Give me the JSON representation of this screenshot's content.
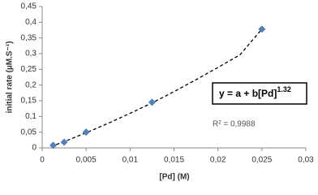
{
  "chart_data": {
    "type": "scatter",
    "x_label": "[Pd] (M)",
    "y_label": "initial rate (µM.S⁻¹)",
    "series": [
      {
        "color": "#4f81bd",
        "x": [
          0.00125,
          0.0025,
          0.005,
          0.0125,
          0.025
        ],
        "values": [
          0.008,
          0.018,
          0.05,
          0.145,
          0.378
        ]
      }
    ],
    "trendline": {
      "style": "dashed",
      "color": "#000000",
      "x": [
        0.001,
        0.0025,
        0.005,
        0.0075,
        0.01,
        0.0125,
        0.015,
        0.0175,
        0.02,
        0.0225,
        0.025
      ],
      "values": [
        0.004,
        0.02,
        0.048,
        0.078,
        0.11,
        0.143,
        0.179,
        0.217,
        0.256,
        0.296,
        0.378
      ]
    },
    "equation": "y = a + b[Pd]",
    "equation_exponent": "1.32",
    "r_squared": "R² = 0,9988",
    "xlim": [
      0,
      0.03
    ],
    "xticks": [
      0,
      {
        "value": 0.005,
        "label": "0,005"
      },
      {
        "value": 0.01,
        "label": "0,01"
      },
      {
        "value": 0.015,
        "label": "0,015"
      },
      {
        "value": 0.02,
        "label": "0,02"
      },
      {
        "value": 0.025,
        "label": "0,025"
      },
      {
        "value": 0.03,
        "label": "0,03"
      }
    ],
    "ylim": [
      0,
      0.45
    ],
    "yticks": [
      0,
      {
        "value": 0.05,
        "label": "0,05"
      },
      {
        "value": 0.1,
        "label": "0,1"
      },
      {
        "value": 0.15,
        "label": "0,15"
      },
      {
        "value": 0.2,
        "label": "0,2"
      },
      {
        "value": 0.25,
        "label": "0,25"
      },
      {
        "value": 0.3,
        "label": "0,3"
      },
      {
        "value": 0.35,
        "label": "0,35"
      },
      {
        "value": 0.4,
        "label": "0,4"
      },
      {
        "value": 0.45,
        "label": "0,45"
      }
    ],
    "grid": false
  }
}
